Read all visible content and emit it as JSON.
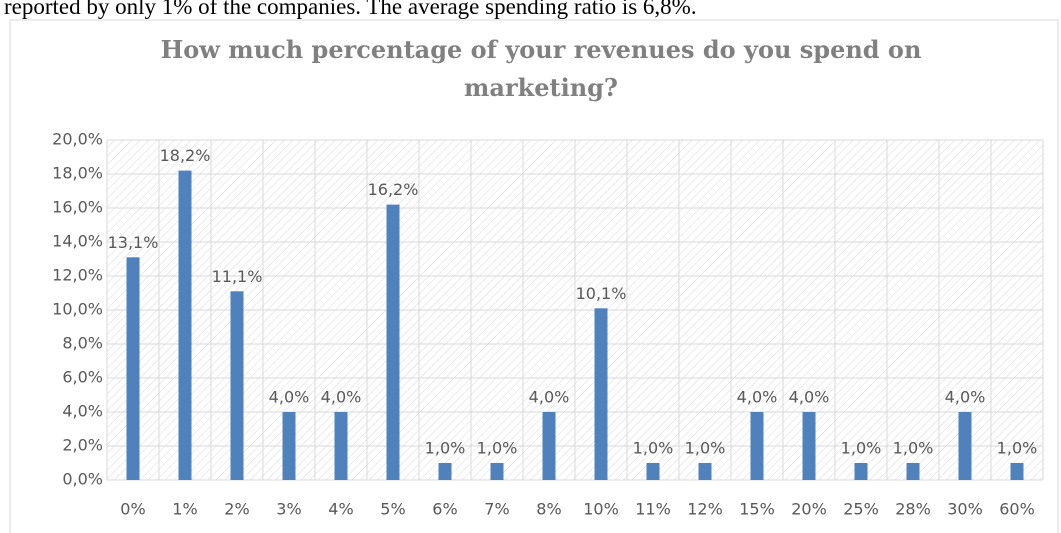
{
  "text_above": "reported by only 1% of the companies. The average spending ratio is 6,8%.",
  "chart_data": {
    "type": "bar",
    "title": [
      "How much percentage of your revenues do you spend on",
      "marketing?"
    ],
    "categories": [
      "0%",
      "1%",
      "2%",
      "3%",
      "4%",
      "5%",
      "6%",
      "7%",
      "8%",
      "10%",
      "11%",
      "12%",
      "15%",
      "20%",
      "25%",
      "28%",
      "30%",
      "60%"
    ],
    "values": [
      13.1,
      18.2,
      11.1,
      4.0,
      4.0,
      16.2,
      1.0,
      1.0,
      4.0,
      10.1,
      1.0,
      1.0,
      4.0,
      4.0,
      1.0,
      1.0,
      4.0,
      1.0
    ],
    "value_labels": [
      "13,1%",
      "18,2%",
      "11,1%",
      "4,0%",
      "4,0%",
      "16,2%",
      "1,0%",
      "1,0%",
      "4,0%",
      "10,1%",
      "1,0%",
      "1,0%",
      "4,0%",
      "4,0%",
      "1,0%",
      "1,0%",
      "4,0%",
      "1,0%"
    ],
    "color": "#4f81bd",
    "ylim": [
      0,
      20
    ],
    "yticks": [
      {
        "value": 0,
        "label": "0,0%"
      },
      {
        "value": 2,
        "label": "2,0%"
      },
      {
        "value": 4,
        "label": "4,0%"
      },
      {
        "value": 6,
        "label": "6,0%"
      },
      {
        "value": 8,
        "label": "8,0%"
      },
      {
        "value": 10,
        "label": "10,0%"
      },
      {
        "value": 12,
        "label": "12,0%"
      },
      {
        "value": 14,
        "label": "14,0%"
      },
      {
        "value": 16,
        "label": "16,0%"
      },
      {
        "value": 18,
        "label": "18,0%"
      },
      {
        "value": 20,
        "label": "20,0%"
      }
    ],
    "grid": true
  }
}
